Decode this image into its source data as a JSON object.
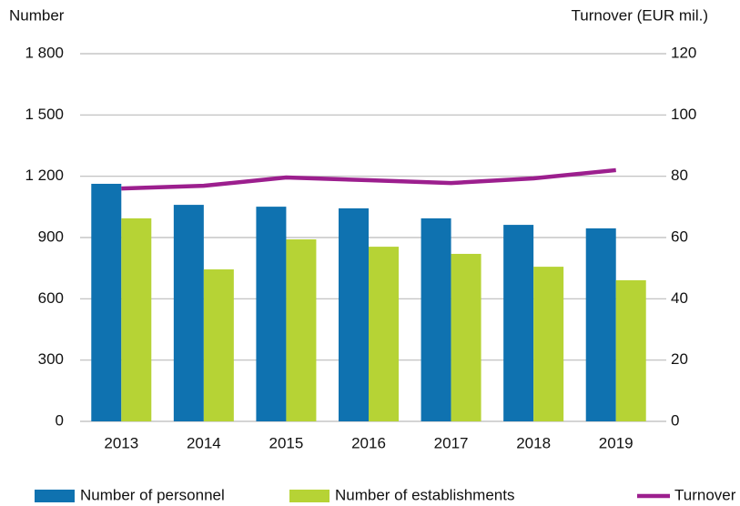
{
  "chart_data": {
    "type": "bar",
    "y_label": "Number",
    "y2_label": "Turnover (EUR mil.)",
    "categories": [
      "2013",
      "2014",
      "2015",
      "2016",
      "2017",
      "2018",
      "2019"
    ],
    "series": [
      {
        "name": "Number of personnel",
        "color": "#0f72b0",
        "values": [
          1163,
          1060,
          1051,
          1043,
          994,
          962,
          945
        ]
      },
      {
        "name": "Number of establishments",
        "color": "#b6d335",
        "values": [
          994,
          744,
          891,
          855,
          820,
          757,
          691
        ]
      },
      {
        "name": "Turnover",
        "color": "#9c1f8e",
        "axis": "y2",
        "type": "line",
        "values": [
          76.0,
          76.9,
          79.6,
          78.7,
          77.8,
          79.3,
          82.0
        ]
      }
    ],
    "ylim": [
      0,
      1800
    ],
    "yticks": [
      0,
      300,
      600,
      900,
      {
        "value": 1200,
        "label": "1 200"
      },
      {
        "value": 1500,
        "label": "1 500"
      },
      {
        "value": 1800,
        "label": "1 800"
      }
    ],
    "y2lim": [
      0,
      120
    ],
    "y2ticks": [
      0,
      20,
      40,
      60,
      80,
      100,
      120
    ],
    "grid": true,
    "legend": "bottom"
  }
}
